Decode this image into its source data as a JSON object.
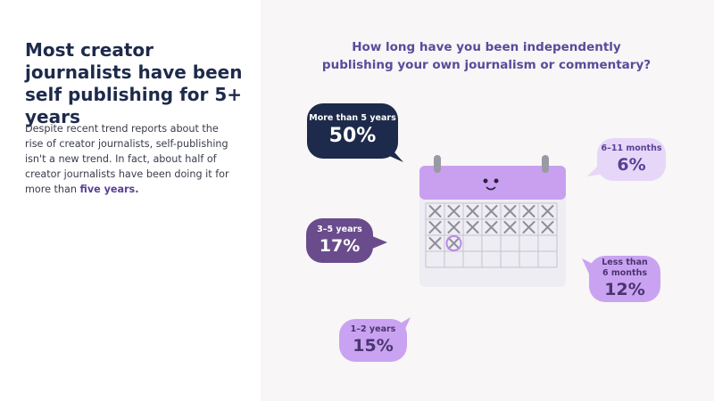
{
  "header": {
    "title": "Most creator journalists have been self publishing for 5+ years"
  },
  "body": {
    "text": "Despite recent trend reports about the rise of creator journalists, self-publishing isn't a new trend. In fact, about half of creator journalists have been doing it for more than",
    "emphasis": "five years."
  },
  "question": "How long have you been independently publishing your own journalism or commentary?",
  "answers": [
    {
      "label": "More than 5 years",
      "share": "50%"
    },
    {
      "label": "3–5 years",
      "share": "17%"
    },
    {
      "label": "1–2 years",
      "share": "15%"
    },
    {
      "label": "6–11 months",
      "share": "6%"
    },
    {
      "label": "Less than 6 months",
      "share": "12%"
    }
  ]
}
